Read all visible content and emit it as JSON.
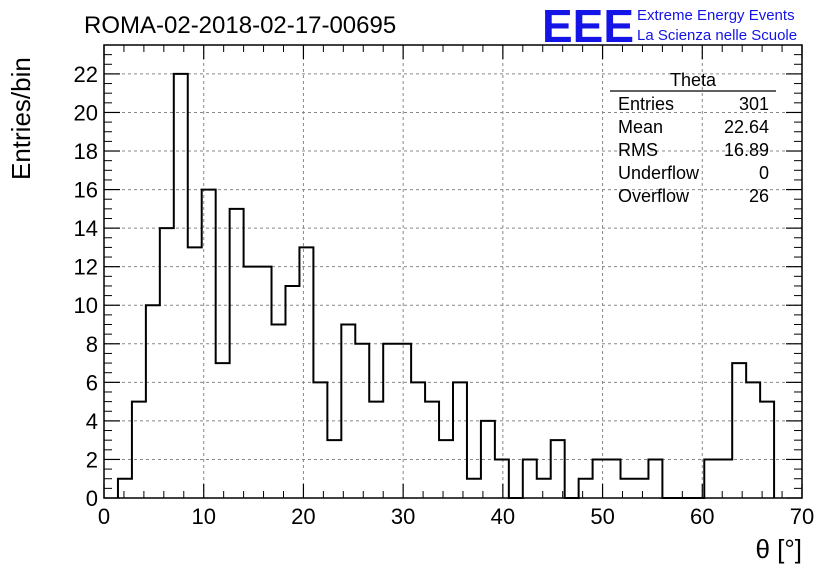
{
  "header": {
    "run_id": "ROMA-02-2018-02-17-00695"
  },
  "logo": {
    "mark": "EEE",
    "line1": "Extreme Energy Events",
    "line2": "La Scienza nelle Scuole",
    "color": "#1414e6"
  },
  "stats": {
    "title": "Theta",
    "rows": [
      {
        "label": "Entries",
        "value": "301"
      },
      {
        "label": "Mean",
        "value": "22.64"
      },
      {
        "label": "RMS",
        "value": "16.89"
      },
      {
        "label": "Underflow",
        "value": "0"
      },
      {
        "label": "Overflow",
        "value": "26"
      }
    ]
  },
  "chart_data": {
    "type": "histogram",
    "title": "ROMA-02-2018-02-17-00695",
    "xlabel": "θ [°]",
    "ylabel": "Entries/bin",
    "xlim": [
      0,
      70
    ],
    "ylim": [
      0,
      23.5
    ],
    "grid": true,
    "bin_width": 1.4,
    "bin_edges_start": 1.4,
    "values": [
      1,
      5,
      10,
      14,
      22,
      13,
      16,
      7,
      15,
      12,
      12,
      9,
      11,
      13,
      6,
      3,
      9,
      8,
      5,
      8,
      8,
      6,
      5,
      3,
      6,
      1,
      4,
      2,
      0,
      2,
      1,
      3,
      0,
      1,
      2,
      2,
      1,
      1,
      2,
      0,
      0,
      0,
      2,
      2,
      7,
      6,
      5
    ],
    "x_ticks": [
      "0",
      "10",
      "20",
      "30",
      "40",
      "50",
      "60",
      "70"
    ],
    "y_ticks": [
      "0",
      "2",
      "4",
      "6",
      "8",
      "10",
      "12",
      "14",
      "16",
      "18",
      "20",
      "22"
    ]
  }
}
